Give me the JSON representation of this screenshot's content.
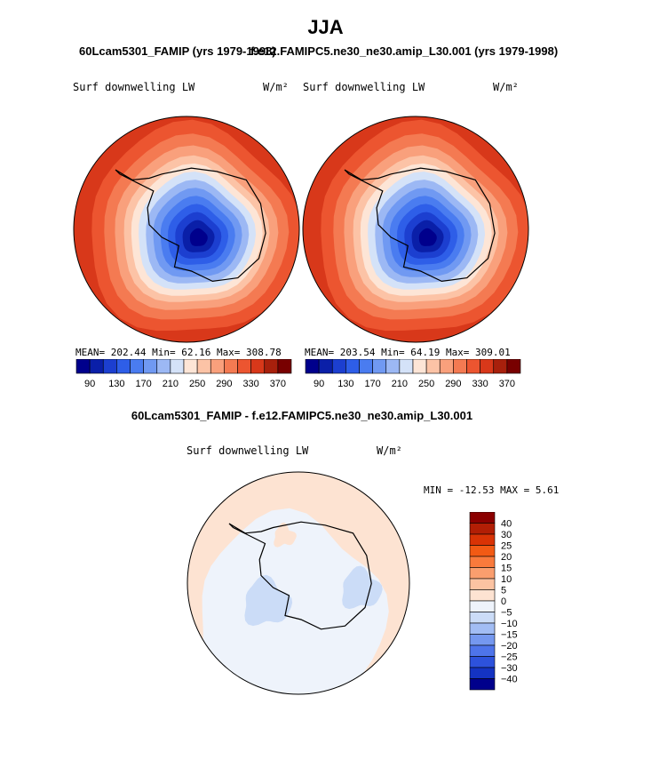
{
  "chart_data": [
    {
      "type": "heatmap",
      "title": "60Lcam5301_FAMIP (yrs 1979-1998)",
      "left_label": "Surf downwelling LW",
      "units": "W/m²",
      "stats": "MEAN= 202.44   Min=   62.16   Max= 308.78",
      "mean": 202.44,
      "min": 62.16,
      "max": 308.78,
      "colorbar_ticks": [
        "90",
        "130",
        "170",
        "210",
        "250",
        "290",
        "330",
        "370"
      ]
    },
    {
      "type": "heatmap",
      "title": "f.e12.FAMIPC5.ne30_ne30.amip_L30.001 (yrs 1979-1998)",
      "left_label": "Surf downwelling LW",
      "units": "W/m²",
      "stats": "MEAN= 203.54   Min=   64.19   Max= 309.01",
      "mean": 203.54,
      "min": 64.19,
      "max": 309.01,
      "colorbar_ticks": [
        "90",
        "130",
        "170",
        "210",
        "250",
        "290",
        "330",
        "370"
      ]
    },
    {
      "type": "heatmap",
      "title": "60Lcam5301_FAMIP - f.e12.FAMIPC5.ne30_ne30.amip_L30.001",
      "left_label": "Surf downwelling LW",
      "units": "W/m²",
      "stats": "MIN = -12.53 MAX =    5.61",
      "min": -12.53,
      "max": 5.61,
      "colorbar_ticks": [
        "40",
        "30",
        "25",
        "20",
        "15",
        "10",
        "5",
        "0",
        "−5",
        "−10",
        "−15",
        "−20",
        "−25",
        "−30",
        "−40"
      ]
    }
  ],
  "page": {
    "season": "JJA"
  },
  "colors": {
    "abs_scale": [
      "#00008c",
      "#0a1fa8",
      "#1c3fd0",
      "#2e5ee8",
      "#4a7cf0",
      "#7099f2",
      "#9cb8f4",
      "#d4e2f8",
      "#fde5d6",
      "#fcc3a6",
      "#f9a07c",
      "#f47a52",
      "#ec5530",
      "#d8381a",
      "#a8200c",
      "#780000"
    ],
    "diff_scale": [
      "#8b0000",
      "#b21e05",
      "#d93305",
      "#f25a14",
      "#f97a3c",
      "#fa9e6e",
      "#fbc3a2",
      "#fde3d2",
      "#eef3fb",
      "#cbdcf7",
      "#a2bdf4",
      "#7598ef",
      "#4e74ea",
      "#2d52dc",
      "#1433c2",
      "#00008c"
    ]
  }
}
